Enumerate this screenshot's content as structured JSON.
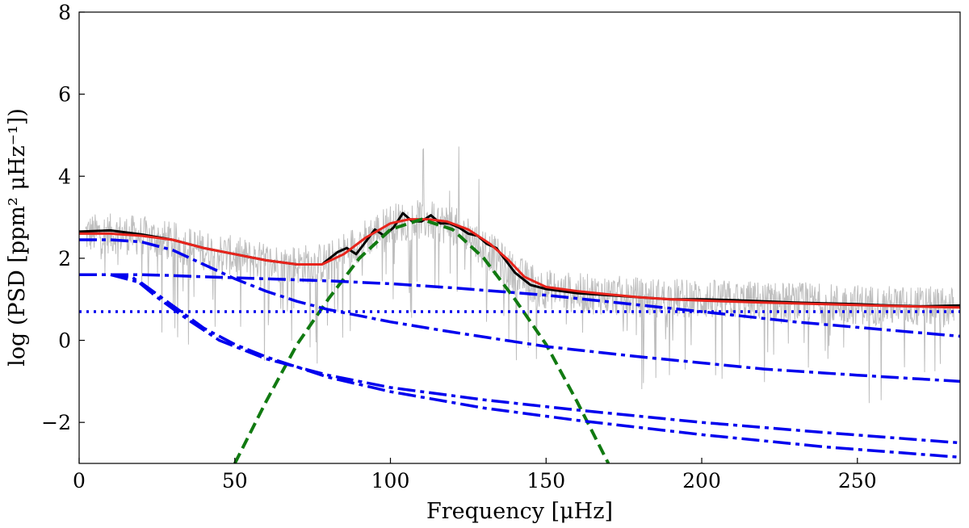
{
  "chart_data": {
    "type": "line",
    "title": "",
    "xlabel": "Frequency [μHz]",
    "ylabel": "log (PSD [ppm² μHz⁻¹])",
    "xlim": [
      0,
      283
    ],
    "ylim": [
      -3,
      8
    ],
    "x_ticks": [
      0,
      50,
      100,
      150,
      200,
      250
    ],
    "y_ticks": [
      -2,
      0,
      2,
      4,
      6,
      8
    ],
    "y_tick_labels": [
      "−2",
      "0",
      "2",
      "4",
      "6",
      "8"
    ],
    "grid": false,
    "legend": "none",
    "series": [
      {
        "style": "noisy-spectrum",
        "color": "#bbbbbb",
        "x": [
          0,
          10,
          20,
          30,
          40,
          50,
          60,
          70,
          80,
          90,
          100,
          110,
          120,
          130,
          140,
          150,
          160,
          170,
          180,
          200,
          220,
          240,
          260,
          283
        ],
        "y": [
          2.6,
          2.6,
          2.55,
          2.4,
          2.2,
          2.05,
          1.9,
          1.85,
          1.9,
          2.4,
          2.85,
          2.95,
          2.8,
          2.3,
          1.6,
          1.25,
          1.15,
          1.1,
          1.05,
          1.0,
          0.95,
          0.9,
          0.85,
          0.8
        ],
        "spread": 0.9
      },
      {
        "style": "solid",
        "color": "#000000",
        "x": [
          0,
          10,
          20,
          30,
          40,
          50,
          60,
          70,
          78,
          83,
          86,
          89,
          92,
          95,
          98,
          101,
          104,
          107,
          110,
          113,
          116,
          119,
          122,
          125,
          128,
          131,
          134,
          137,
          140,
          145,
          150,
          160,
          170,
          180,
          190,
          200,
          210,
          220,
          230,
          240,
          250,
          260,
          270,
          283
        ],
        "y": [
          2.65,
          2.68,
          2.58,
          2.45,
          2.25,
          2.1,
          1.95,
          1.85,
          1.85,
          2.15,
          2.25,
          2.1,
          2.4,
          2.7,
          2.55,
          2.75,
          3.1,
          2.9,
          2.9,
          3.05,
          2.85,
          2.85,
          2.75,
          2.6,
          2.55,
          2.35,
          2.25,
          1.95,
          1.65,
          1.35,
          1.25,
          1.15,
          1.1,
          1.05,
          1.0,
          1.0,
          0.98,
          0.95,
          0.92,
          0.9,
          0.88,
          0.85,
          0.83,
          0.85
        ]
      },
      {
        "style": "solid",
        "color": "#e8241c",
        "x": [
          0,
          10,
          20,
          30,
          40,
          50,
          60,
          70,
          78,
          85,
          92,
          100,
          106,
          112,
          118,
          125,
          132,
          138,
          143,
          150,
          160,
          170,
          180,
          190,
          200,
          220,
          240,
          260,
          283
        ],
        "y": [
          2.6,
          2.6,
          2.55,
          2.45,
          2.25,
          2.1,
          1.95,
          1.85,
          1.85,
          2.1,
          2.5,
          2.85,
          2.95,
          2.95,
          2.9,
          2.7,
          2.35,
          1.95,
          1.55,
          1.3,
          1.2,
          1.12,
          1.05,
          1.0,
          0.97,
          0.92,
          0.88,
          0.84,
          0.8
        ]
      },
      {
        "style": "dashed",
        "color": "#117a11",
        "x": [
          50,
          60,
          70,
          80,
          90,
          100,
          110,
          120,
          130,
          140,
          150,
          160,
          170
        ],
        "y": [
          -3.0,
          -1.5,
          -0.1,
          1.0,
          2.0,
          2.7,
          2.95,
          2.7,
          2.0,
          1.0,
          -0.1,
          -1.5,
          -3.0
        ]
      },
      {
        "style": "dotted",
        "color": "#0000ee",
        "x": [
          0,
          283
        ],
        "y": [
          0.7,
          0.7
        ]
      },
      {
        "style": "dash-dot",
        "color": "#0000ee",
        "x": [
          0,
          10,
          20,
          30,
          40,
          50,
          60,
          70,
          80,
          100,
          120,
          150,
          180,
          220,
          250,
          283
        ],
        "y": [
          2.45,
          2.45,
          2.4,
          2.2,
          1.85,
          1.5,
          1.2,
          0.95,
          0.75,
          0.45,
          0.2,
          -0.15,
          -0.4,
          -0.7,
          -0.85,
          -1.0
        ]
      },
      {
        "style": "dash-dot",
        "color": "#0000ee",
        "x": [
          0,
          10,
          20,
          30,
          40,
          60,
          80,
          100,
          120,
          150,
          175,
          200,
          230,
          260,
          283
        ],
        "y": [
          1.6,
          1.6,
          1.6,
          1.58,
          1.55,
          1.5,
          1.45,
          1.38,
          1.28,
          1.1,
          0.9,
          0.7,
          0.45,
          0.25,
          0.1
        ]
      },
      {
        "style": "dash-dot",
        "color": "#0000ee",
        "x": [
          0,
          10,
          17,
          25,
          35,
          45,
          60,
          80,
          100,
          130,
          160,
          200,
          240,
          283
        ],
        "y": [
          1.6,
          1.6,
          1.55,
          1.05,
          0.5,
          0.0,
          -0.45,
          -0.85,
          -1.15,
          -1.45,
          -1.7,
          -2.0,
          -2.25,
          -2.5
        ]
      },
      {
        "style": "dash-dot",
        "color": "#0000ee",
        "x": [
          0,
          10,
          20,
          30,
          40,
          50,
          60,
          80,
          100,
          130,
          160,
          200,
          240,
          283
        ],
        "y": [
          1.6,
          1.6,
          1.4,
          0.85,
          0.3,
          -0.1,
          -0.4,
          -0.9,
          -1.25,
          -1.65,
          -1.95,
          -2.3,
          -2.6,
          -2.85
        ]
      }
    ]
  }
}
